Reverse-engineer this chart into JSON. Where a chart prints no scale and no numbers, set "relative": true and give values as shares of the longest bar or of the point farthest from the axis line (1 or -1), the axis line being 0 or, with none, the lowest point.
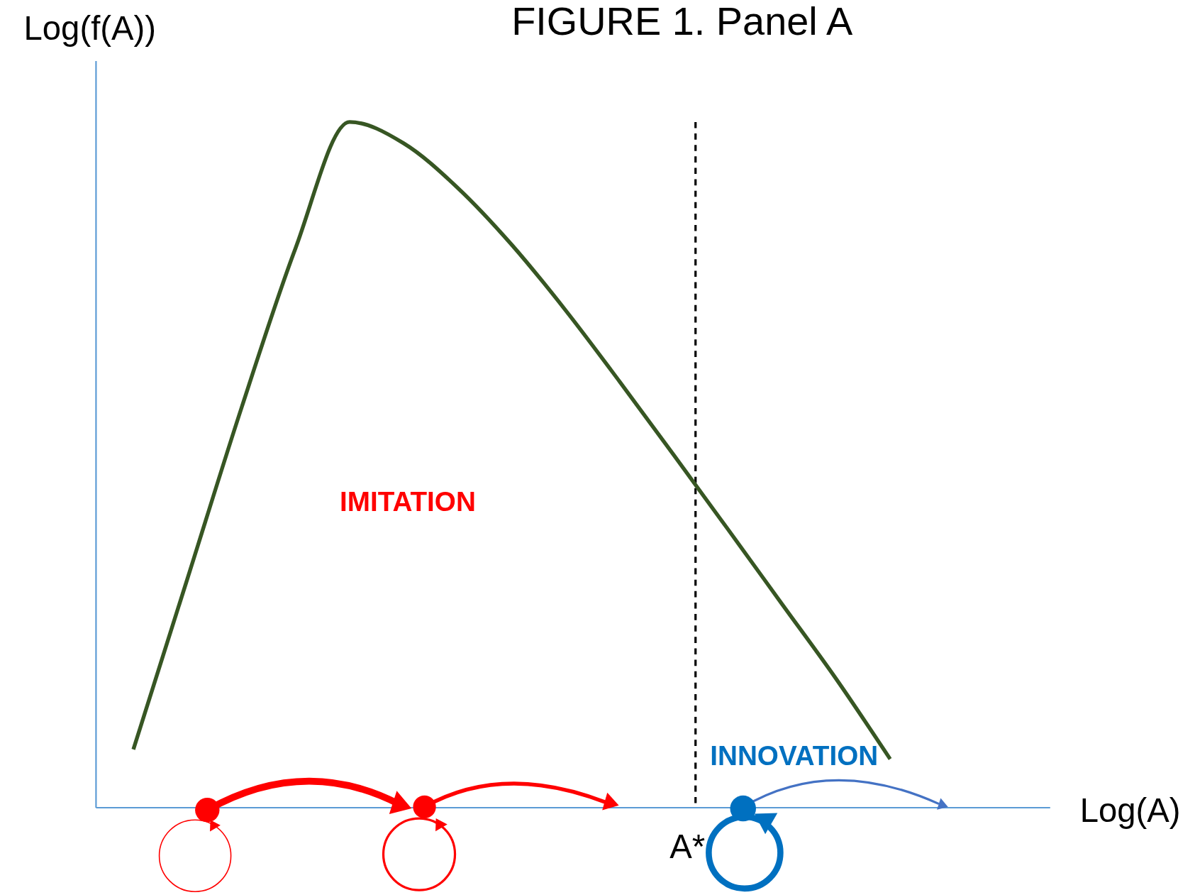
{
  "chart_data": {
    "type": "line",
    "title": "FIGURE 1. Panel A",
    "xlabel": "Log(A)",
    "ylabel": "Log(f(A))",
    "relative": true,
    "categories": [
      null,
      null,
      null,
      null,
      null,
      null,
      null,
      null,
      null,
      null,
      null,
      null,
      null,
      null,
      null
    ],
    "series": [
      {
        "color": "#375623",
        "values": [
          0.085,
          0.334,
          0.583,
          0.816,
          1,
          0.969,
          0.904,
          0.821,
          0.725,
          0.621,
          0.514,
          0.406,
          0.297,
          0.188,
          0.071
        ]
      }
    ],
    "annotations": [
      "IMITATION",
      "INNOVATION",
      "A*"
    ],
    "line_style": "solid"
  }
}
